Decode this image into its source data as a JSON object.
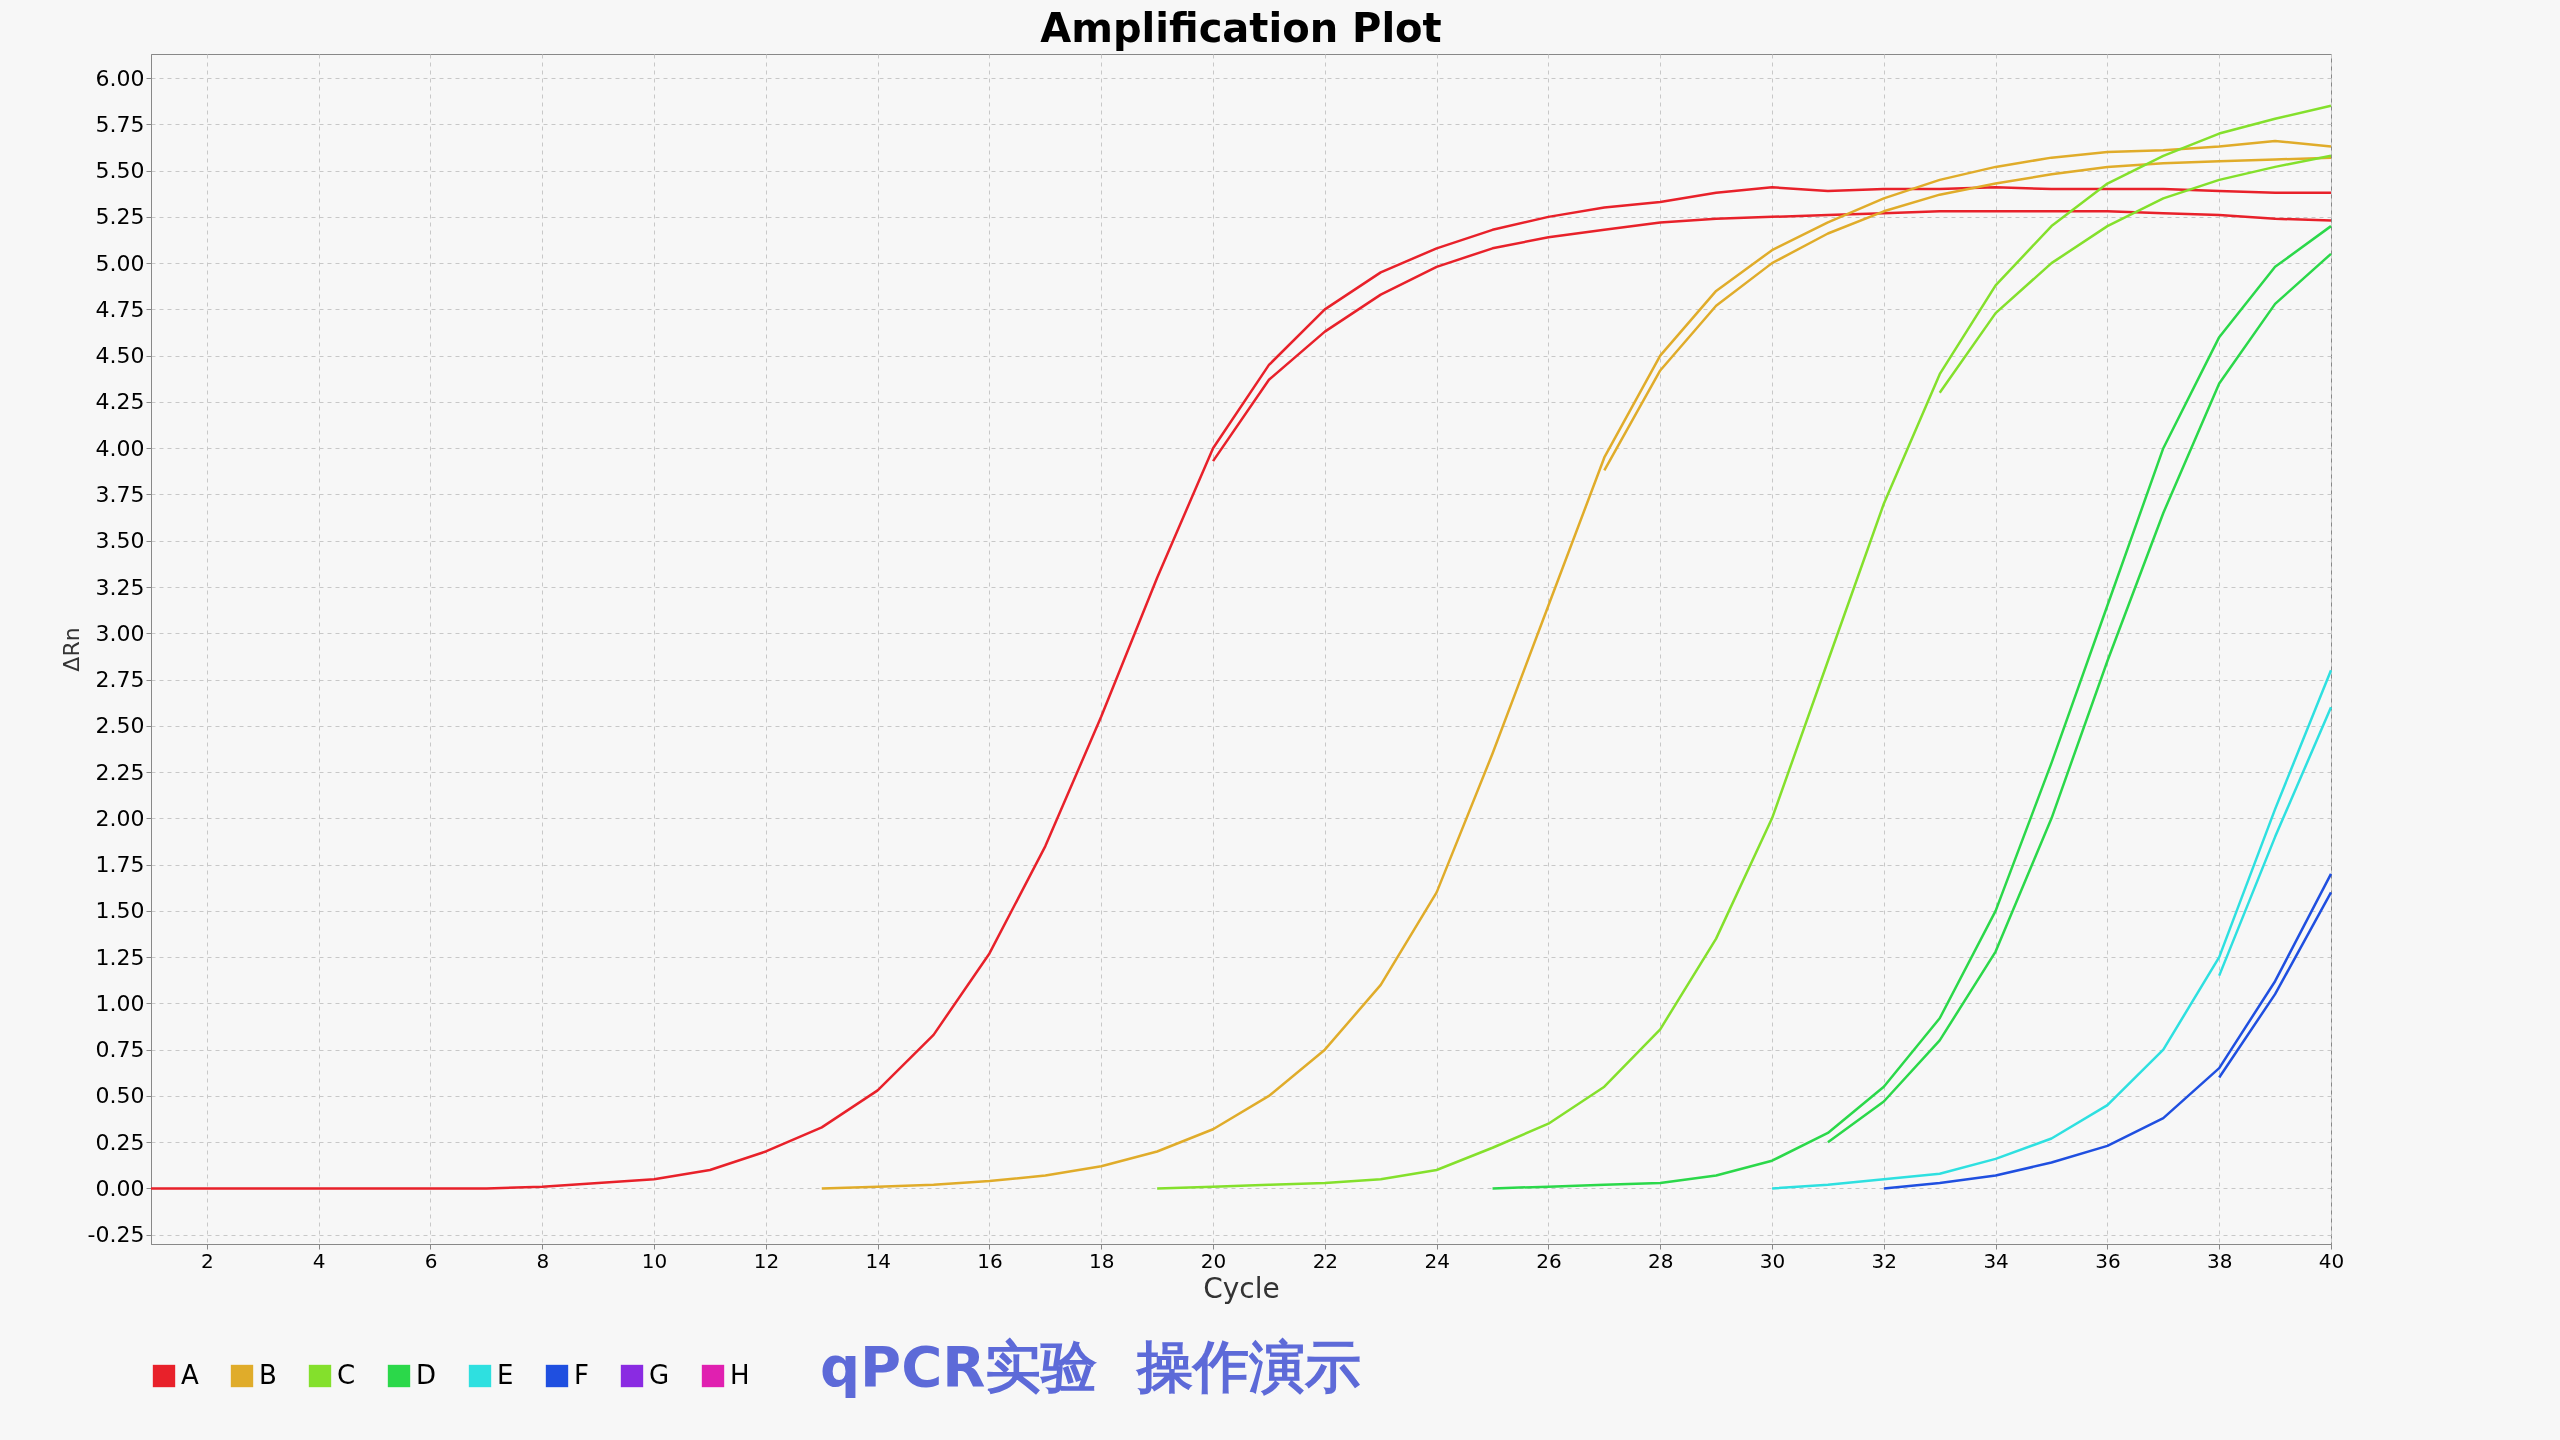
{
  "chart_data": {
    "type": "line",
    "title": "Amplification Plot",
    "xlabel": "Cycle",
    "ylabel": "ΔRn",
    "annotations": [
      "qPCR实验",
      "操作演示"
    ],
    "x": [
      1,
      2,
      3,
      4,
      5,
      6,
      7,
      8,
      9,
      10,
      11,
      12,
      13,
      14,
      15,
      16,
      17,
      18,
      19,
      20,
      21,
      22,
      23,
      24,
      25,
      26,
      27,
      28,
      29,
      30,
      31,
      32,
      33,
      34,
      35,
      36,
      37,
      38,
      39,
      40
    ],
    "xlim": [
      1,
      40
    ],
    "xticks": [
      2,
      4,
      6,
      8,
      10,
      12,
      14,
      16,
      18,
      20,
      22,
      24,
      26,
      28,
      30,
      32,
      34,
      36,
      38,
      40
    ],
    "ylim": [
      -0.3,
      6.13
    ],
    "yticks": [
      {
        "value": -0.25,
        "label": "-0.25"
      },
      {
        "value": 0,
        "label": "0.00"
      },
      {
        "value": 0.25,
        "label": "0.25"
      },
      {
        "value": 0.5,
        "label": "0.50"
      },
      {
        "value": 0.75,
        "label": "0.75"
      },
      {
        "value": 1,
        "label": "1.00"
      },
      {
        "value": 1.25,
        "label": "1.25"
      },
      {
        "value": 1.5,
        "label": "1.50"
      },
      {
        "value": 1.75,
        "label": "1.75"
      },
      {
        "value": 2,
        "label": "2.00"
      },
      {
        "value": 2.25,
        "label": "2.25"
      },
      {
        "value": 2.5,
        "label": "2.50"
      },
      {
        "value": 2.75,
        "label": "2.75"
      },
      {
        "value": 3,
        "label": "3.00"
      },
      {
        "value": 3.25,
        "label": "3.25"
      },
      {
        "value": 3.5,
        "label": "3.50"
      },
      {
        "value": 3.75,
        "label": "3.75"
      },
      {
        "value": 4,
        "label": "4.00"
      },
      {
        "value": 4.25,
        "label": "4.25"
      },
      {
        "value": 4.5,
        "label": "4.50"
      },
      {
        "value": 4.75,
        "label": "4.75"
      },
      {
        "value": 5,
        "label": "5.00"
      },
      {
        "value": 5.25,
        "label": "5.25"
      },
      {
        "value": 5.5,
        "label": "5.50"
      },
      {
        "value": 5.75,
        "label": "5.75"
      },
      {
        "value": 6,
        "label": "6.00"
      }
    ],
    "grid": true,
    "legend": "bottom left",
    "marker": "none",
    "line_style": "solid",
    "series": [
      {
        "name": "A",
        "color": "#e8212a",
        "values": [
          0,
          0,
          0,
          0,
          0,
          0,
          0,
          0.01,
          0.03,
          0.05,
          0.1,
          0.2,
          0.33,
          0.53,
          0.83,
          1.27,
          1.85,
          2.55,
          3.3,
          4.0,
          4.45,
          4.75,
          4.95,
          5.08,
          5.18,
          5.25,
          5.3,
          5.33,
          5.38,
          5.41,
          5.39,
          5.4,
          5.4,
          5.41,
          5.4,
          5.4,
          5.4,
          5.39,
          5.38,
          5.38
        ]
      },
      {
        "color": "#e8212a",
        "values": [
          null,
          null,
          null,
          null,
          null,
          null,
          null,
          null,
          null,
          null,
          null,
          null,
          null,
          null,
          null,
          null,
          null,
          null,
          null,
          3.93,
          4.37,
          4.63,
          4.83,
          4.98,
          5.08,
          5.14,
          5.18,
          5.22,
          5.24,
          5.25,
          5.26,
          5.27,
          5.28,
          5.28,
          5.28,
          5.28,
          5.27,
          5.26,
          5.24,
          5.23
        ]
      },
      {
        "name": "B",
        "color": "#e0ac2a",
        "values": [
          null,
          null,
          null,
          null,
          null,
          null,
          null,
          null,
          null,
          null,
          null,
          null,
          0,
          0.01,
          0.02,
          0.04,
          0.07,
          0.12,
          0.2,
          0.32,
          0.5,
          0.75,
          1.1,
          1.6,
          2.35,
          3.15,
          3.95,
          4.5,
          4.85,
          5.07,
          5.22,
          5.35,
          5.45,
          5.52,
          5.57,
          5.6,
          5.61,
          5.63,
          5.66,
          5.63
        ]
      },
      {
        "color": "#e0ac2a",
        "values": [
          null,
          null,
          null,
          null,
          null,
          null,
          null,
          null,
          null,
          null,
          null,
          null,
          null,
          null,
          null,
          null,
          null,
          null,
          null,
          null,
          null,
          null,
          null,
          null,
          null,
          null,
          3.88,
          4.42,
          4.77,
          5.0,
          5.16,
          5.28,
          5.37,
          5.43,
          5.48,
          5.52,
          5.54,
          5.55,
          5.56,
          5.57
        ]
      },
      {
        "name": "C",
        "color": "#84e02c",
        "values": [
          null,
          null,
          null,
          null,
          null,
          null,
          null,
          null,
          null,
          null,
          null,
          null,
          null,
          null,
          null,
          null,
          null,
          null,
          0,
          0.01,
          0.02,
          0.03,
          0.05,
          0.1,
          0.22,
          0.35,
          0.55,
          0.86,
          1.35,
          2.0,
          2.85,
          3.7,
          4.4,
          4.88,
          5.2,
          5.43,
          5.58,
          5.7,
          5.78,
          5.85
        ]
      },
      {
        "color": "#84e02c",
        "values": [
          null,
          null,
          null,
          null,
          null,
          null,
          null,
          null,
          null,
          null,
          null,
          null,
          null,
          null,
          null,
          null,
          null,
          null,
          null,
          null,
          null,
          null,
          null,
          null,
          null,
          null,
          null,
          null,
          null,
          null,
          null,
          null,
          4.3,
          4.73,
          5.0,
          5.2,
          5.35,
          5.45,
          5.52,
          5.58
        ]
      },
      {
        "name": "D",
        "color": "#2bd84a",
        "values": [
          null,
          null,
          null,
          null,
          null,
          null,
          null,
          null,
          null,
          null,
          null,
          null,
          null,
          null,
          null,
          null,
          null,
          null,
          null,
          null,
          null,
          null,
          null,
          null,
          0,
          0.01,
          0.02,
          0.03,
          0.07,
          0.15,
          0.3,
          0.55,
          0.92,
          1.5,
          2.3,
          3.15,
          4.0,
          4.6,
          4.98,
          5.2
        ]
      },
      {
        "color": "#2bd84a",
        "values": [
          null,
          null,
          null,
          null,
          null,
          null,
          null,
          null,
          null,
          null,
          null,
          null,
          null,
          null,
          null,
          null,
          null,
          null,
          null,
          null,
          null,
          null,
          null,
          null,
          null,
          null,
          null,
          null,
          null,
          null,
          0.25,
          0.47,
          0.8,
          1.28,
          2.0,
          2.85,
          3.65,
          4.35,
          4.78,
          5.05
        ]
      },
      {
        "name": "E",
        "color": "#2ee0e0",
        "values": [
          null,
          null,
          null,
          null,
          null,
          null,
          null,
          null,
          null,
          null,
          null,
          null,
          null,
          null,
          null,
          null,
          null,
          null,
          null,
          null,
          null,
          null,
          null,
          null,
          null,
          null,
          null,
          null,
          null,
          0,
          0.02,
          0.05,
          0.08,
          0.16,
          0.27,
          0.45,
          0.75,
          1.25,
          2.05,
          2.8
        ]
      },
      {
        "color": "#2ee0e0",
        "values": [
          null,
          null,
          null,
          null,
          null,
          null,
          null,
          null,
          null,
          null,
          null,
          null,
          null,
          null,
          null,
          null,
          null,
          null,
          null,
          null,
          null,
          null,
          null,
          null,
          null,
          null,
          null,
          null,
          null,
          null,
          null,
          null,
          null,
          null,
          null,
          null,
          null,
          1.15,
          1.9,
          2.6
        ]
      },
      {
        "name": "F",
        "color": "#1f4fe0",
        "values": [
          null,
          null,
          null,
          null,
          null,
          null,
          null,
          null,
          null,
          null,
          null,
          null,
          null,
          null,
          null,
          null,
          null,
          null,
          null,
          null,
          null,
          null,
          null,
          null,
          null,
          null,
          null,
          null,
          null,
          null,
          null,
          0,
          0.03,
          0.07,
          0.14,
          0.23,
          0.38,
          0.65,
          1.12,
          1.7
        ]
      },
      {
        "color": "#1f4fe0",
        "values": [
          null,
          null,
          null,
          null,
          null,
          null,
          null,
          null,
          null,
          null,
          null,
          null,
          null,
          null,
          null,
          null,
          null,
          null,
          null,
          null,
          null,
          null,
          null,
          null,
          null,
          null,
          null,
          null,
          null,
          null,
          null,
          null,
          null,
          null,
          null,
          null,
          null,
          0.6,
          1.05,
          1.6
        ]
      },
      {
        "name": "G",
        "color": "#8a2be2",
        "values": [
          null,
          null,
          null,
          null,
          null,
          null,
          null,
          null,
          null,
          null,
          null,
          null,
          null,
          null,
          null,
          null,
          null,
          null,
          null,
          null,
          null,
          null,
          null,
          null,
          null,
          null,
          null,
          null,
          null,
          null,
          null,
          null,
          null,
          null,
          null,
          null,
          null,
          null,
          null,
          null
        ]
      },
      {
        "name": "H",
        "color": "#e020b0",
        "values": [
          null,
          null,
          null,
          null,
          null,
          null,
          null,
          null,
          null,
          null,
          null,
          null,
          null,
          null,
          null,
          null,
          null,
          null,
          null,
          null,
          null,
          null,
          null,
          null,
          null,
          null,
          null,
          null,
          null,
          null,
          null,
          null,
          null,
          null,
          null,
          null,
          null,
          null,
          null,
          null
        ]
      }
    ]
  }
}
